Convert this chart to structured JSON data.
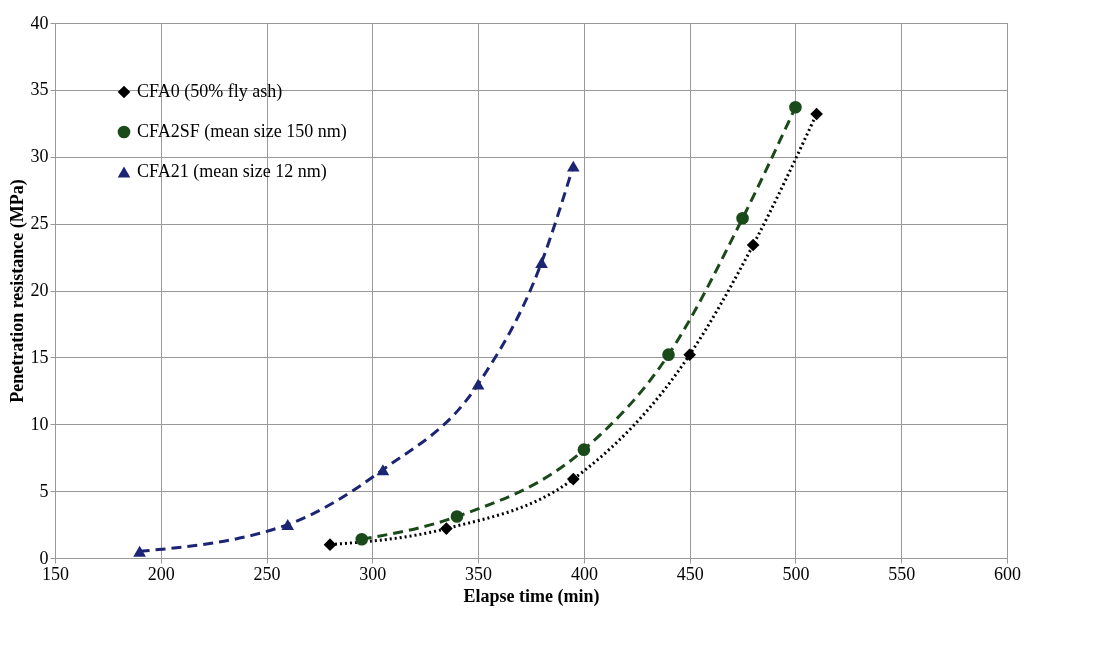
{
  "chart_data": {
    "type": "line",
    "xlabel": "Elapse time (min)",
    "ylabel": "Penetration resistance (MPa)",
    "xlim": [
      150,
      600
    ],
    "xticks": [
      150,
      200,
      250,
      300,
      350,
      400,
      450,
      500,
      550,
      600
    ],
    "ylim": [
      0,
      40
    ],
    "yticks": [
      0,
      5,
      10,
      15,
      20,
      25,
      30,
      35,
      40
    ],
    "grid": true,
    "legend": "top left",
    "series": [
      {
        "name": "CFA0 (50% fly ash)",
        "color": "#000000",
        "marker": "diamond",
        "line_style": "dotted",
        "x": [
          280,
          335,
          395,
          450,
          480,
          510
        ],
        "values": [
          1.0,
          2.2,
          5.9,
          15.2,
          23.4,
          33.2
        ]
      },
      {
        "name": "CFA2SF (mean size 150 nm)",
        "color": "#1a4a1a",
        "marker": "circle",
        "line_style": "dashed",
        "x": [
          295,
          340,
          400,
          440,
          475,
          500
        ],
        "values": [
          1.4,
          3.1,
          8.1,
          15.2,
          25.4,
          33.7
        ]
      },
      {
        "name": "CFA21 (mean size 12 nm)",
        "color": "#1c2474",
        "marker": "triangle",
        "line_style": "dashed",
        "x": [
          190,
          260,
          305,
          350,
          380,
          395
        ],
        "values": [
          0.5,
          2.5,
          6.6,
          13.0,
          22.1,
          29.3
        ]
      }
    ]
  }
}
